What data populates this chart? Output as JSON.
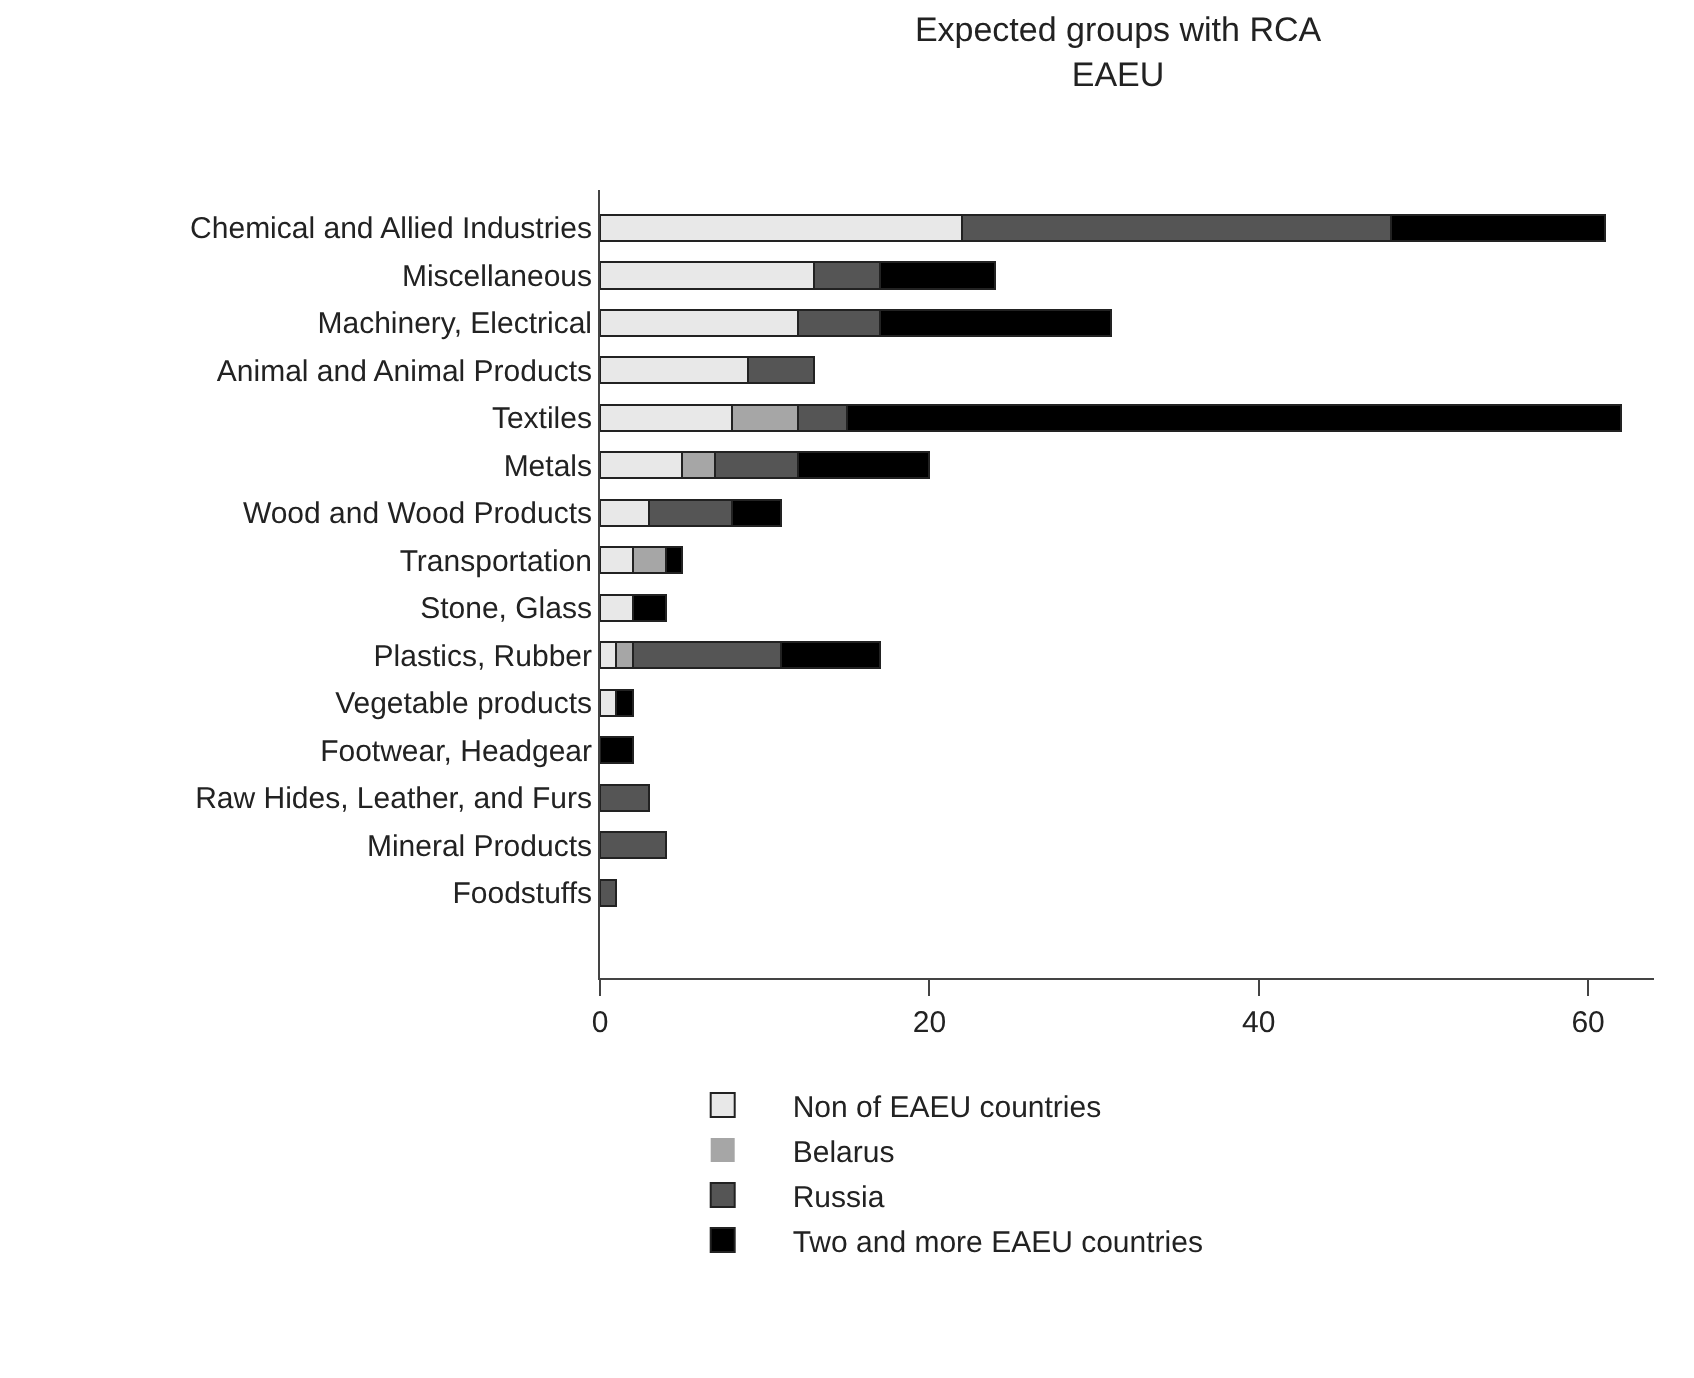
{
  "chart_data": {
    "type": "bar",
    "orientation": "horizontal",
    "stacked": true,
    "title": "Expected groups with RCA\nEAEU",
    "categories": [
      "Chemical and Allied Industries",
      "Miscellaneous",
      "Machinery, Electrical",
      "Animal and Animal Products",
      "Textiles",
      "Metals",
      "Wood and Wood Products",
      "Transportation",
      "Stone, Glass",
      "Plastics, Rubber",
      "Vegetable products",
      "Footwear, Headgear",
      "Raw Hides, Leather, and Furs",
      "Mineral Products",
      "Foodstuffs"
    ],
    "series": [
      {
        "name": "Non of EAEU countries",
        "color": "#e8e8e8",
        "values": [
          22,
          13,
          12,
          9,
          8,
          5,
          3,
          2,
          2,
          1,
          1,
          0,
          0,
          0,
          0
        ]
      },
      {
        "name": "Belarus",
        "color": "#a6a6a6",
        "values": [
          0,
          0,
          0,
          0,
          4,
          2,
          0,
          2,
          0,
          1,
          0,
          0,
          0,
          0,
          0
        ]
      },
      {
        "name": "Russia",
        "color": "#555555",
        "values": [
          26,
          4,
          5,
          4,
          3,
          5,
          5,
          0,
          0,
          9,
          0,
          0,
          3,
          4,
          1
        ]
      },
      {
        "name": "Two and more EAEU countries",
        "color": "#000000",
        "values": [
          13,
          7,
          14,
          0,
          47,
          8,
          3,
          1,
          2,
          6,
          1,
          2,
          0,
          0,
          0
        ]
      }
    ],
    "xlim": [
      0,
      64
    ],
    "xticks": [
      0,
      20,
      40,
      60
    ],
    "grid": false,
    "legend": "bottom"
  }
}
